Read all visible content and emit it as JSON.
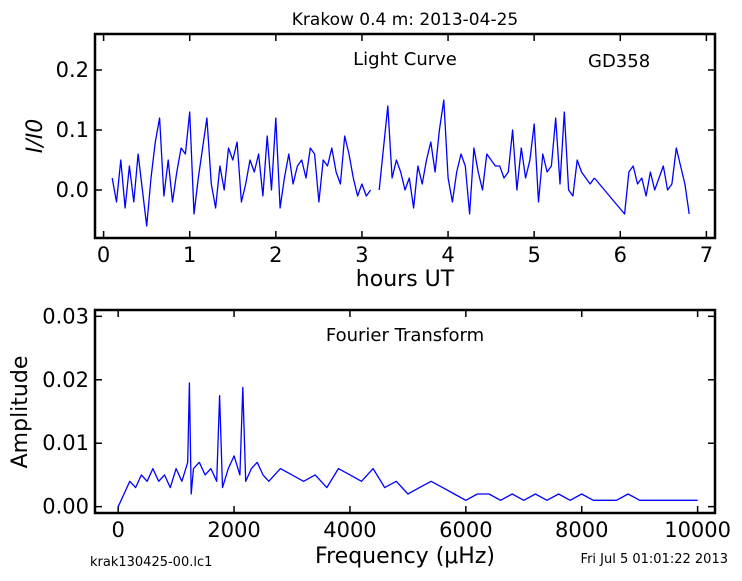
{
  "header": {
    "title": "Krakow 0.4 m:  2013-04-25"
  },
  "footer": {
    "left": "krak130425-00.lc1",
    "right": "Fri Jul  5 01:01:22 2013"
  },
  "colors": {
    "series": "#0000ff",
    "axes": "#000000",
    "background": "#ffffff"
  },
  "chart_data": [
    {
      "type": "line",
      "panel": "light-curve",
      "title": "Light Curve",
      "annotation": "GD358",
      "xlabel": "hours UT",
      "ylabel": "I/I0",
      "xlim": [
        -0.1,
        7.1
      ],
      "ylim": [
        -0.08,
        0.26
      ],
      "xticks": [
        0,
        1,
        2,
        3,
        4,
        5,
        6,
        7
      ],
      "xtick_labels": [
        "0",
        "1",
        "2",
        "3",
        "4",
        "5",
        "6",
        "7"
      ],
      "yticks": [
        0.0,
        0.1,
        0.2
      ],
      "ytick_labels": [
        "0.0",
        "0.1",
        "0.2"
      ],
      "grid": false,
      "series": [
        {
          "x": [
            0.1,
            0.15,
            0.2,
            0.25,
            0.3,
            0.35,
            0.4,
            0.45,
            0.5,
            0.55,
            0.6,
            0.65,
            0.7,
            0.75,
            0.8,
            0.85,
            0.9,
            0.95,
            1.0,
            1.05,
            1.1,
            1.15,
            1.2,
            1.25,
            1.3,
            1.35,
            1.4,
            1.45,
            1.5,
            1.55,
            1.6,
            1.65,
            1.7,
            1.75,
            1.8,
            1.85,
            1.9,
            1.95,
            2.0,
            2.05,
            2.1,
            2.15,
            2.2,
            2.25,
            2.3,
            2.35,
            2.4,
            2.45,
            2.5,
            2.55,
            2.6,
            2.65,
            2.7,
            2.75,
            2.8,
            2.85,
            2.9,
            2.95,
            3.0,
            3.05,
            3.1
          ],
          "y": [
            0.02,
            -0.02,
            0.05,
            -0.03,
            0.04,
            -0.02,
            0.06,
            0.0,
            -0.06,
            0.02,
            0.08,
            0.12,
            -0.01,
            0.05,
            -0.02,
            0.03,
            0.07,
            0.06,
            0.13,
            -0.04,
            0.02,
            0.07,
            0.12,
            0.01,
            -0.03,
            0.04,
            0.0,
            0.07,
            0.05,
            0.08,
            -0.02,
            0.01,
            0.05,
            0.03,
            0.06,
            -0.01,
            0.09,
            0.0,
            0.12,
            -0.03,
            0.02,
            0.06,
            0.01,
            0.04,
            0.05,
            0.02,
            0.07,
            0.06,
            -0.02,
            0.05,
            0.04,
            0.07,
            0.03,
            0.01,
            0.09,
            0.06,
            0.02,
            -0.01,
            0.01,
            -0.01,
            0.0
          ]
        },
        {
          "x": [
            3.1,
            3.15,
            3.2,
            3.25,
            3.3,
            3.35,
            3.4,
            3.45,
            3.5,
            3.55,
            3.6,
            3.65,
            3.7,
            3.75,
            3.8,
            3.85,
            3.9,
            3.95,
            4.0,
            4.05,
            4.1,
            4.15,
            4.2,
            4.25,
            4.3,
            4.35,
            4.4,
            4.45,
            4.5,
            4.55,
            4.6,
            4.65,
            4.7,
            4.75,
            4.8,
            4.85,
            4.9,
            4.95,
            5.0,
            5.05,
            5.1,
            5.15,
            5.2,
            5.25,
            5.3,
            5.35,
            5.4,
            5.45,
            5.5,
            5.55,
            5.6,
            5.65,
            5.7
          ],
          "y": [
            null,
            null,
            0.0,
            0.07,
            0.14,
            0.02,
            0.05,
            0.03,
            0.0,
            0.02,
            -0.03,
            0.04,
            0.01,
            0.05,
            0.08,
            0.03,
            0.1,
            0.15,
            0.02,
            -0.02,
            0.03,
            0.06,
            0.04,
            -0.04,
            0.07,
            0.03,
            0.0,
            0.06,
            0.05,
            0.04,
            0.04,
            0.02,
            0.03,
            0.1,
            0.0,
            0.07,
            0.02,
            0.05,
            0.11,
            -0.02,
            0.06,
            0.03,
            0.04,
            0.12,
            0.01,
            0.13,
            0.0,
            -0.01,
            0.05,
            0.03,
            0.02,
            0.01,
            0.02
          ]
        },
        {
          "x": [
            5.7,
            6.05,
            6.1,
            6.15,
            6.2,
            6.25,
            6.3,
            6.35,
            6.4,
            6.45,
            6.5,
            6.55,
            6.6,
            6.65,
            6.7,
            6.75,
            6.8
          ],
          "y": [
            0.02,
            -0.04,
            0.03,
            0.04,
            0.01,
            0.02,
            -0.01,
            0.03,
            0.0,
            0.02,
            0.04,
            0.0,
            0.01,
            0.07,
            0.04,
            0.01,
            -0.04
          ]
        }
      ]
    },
    {
      "type": "line",
      "panel": "fourier-transform",
      "title": "Fourier Transform",
      "xlabel": "Frequency (μHz)",
      "ylabel": "Amplitude",
      "xlim": [
        -400,
        10300
      ],
      "ylim": [
        -0.001,
        0.031
      ],
      "xticks": [
        0,
        2000,
        4000,
        6000,
        8000,
        10000
      ],
      "xtick_labels": [
        "0",
        "2000",
        "4000",
        "6000",
        "8000",
        "10000"
      ],
      "yticks": [
        0.0,
        0.01,
        0.02,
        0.03
      ],
      "ytick_labels": [
        "0.00",
        "0.01",
        "0.02",
        "0.03"
      ],
      "grid": false,
      "peaks": [
        {
          "frequency": 1230,
          "amplitude": 0.0195
        },
        {
          "frequency": 1750,
          "amplitude": 0.0175
        },
        {
          "frequency": 2150,
          "amplitude": 0.0188
        }
      ],
      "series": [
        {
          "x": [
            0,
            100,
            200,
            300,
            400,
            500,
            600,
            700,
            800,
            900,
            1000,
            1100,
            1200,
            1230,
            1260,
            1300,
            1400,
            1500,
            1600,
            1700,
            1750,
            1800,
            1900,
            2000,
            2100,
            2150,
            2200,
            2300,
            2400,
            2500,
            2600,
            2800,
            3000,
            3200,
            3400,
            3600,
            3800,
            4000,
            4200,
            4400,
            4600,
            4800,
            5000,
            5200,
            5400,
            5600,
            5800,
            6000,
            6200,
            6400,
            6600,
            6800,
            7000,
            7200,
            7400,
            7600,
            7800,
            8000,
            8200,
            8400,
            8600,
            8800,
            9000,
            9200,
            9400,
            9600,
            9800,
            10000
          ],
          "y": [
            0.0,
            0.002,
            0.004,
            0.003,
            0.005,
            0.004,
            0.006,
            0.004,
            0.005,
            0.003,
            0.006,
            0.004,
            0.007,
            0.0195,
            0.002,
            0.006,
            0.007,
            0.005,
            0.006,
            0.004,
            0.0175,
            0.003,
            0.006,
            0.008,
            0.005,
            0.0188,
            0.004,
            0.006,
            0.007,
            0.005,
            0.004,
            0.006,
            0.005,
            0.004,
            0.005,
            0.003,
            0.006,
            0.005,
            0.004,
            0.006,
            0.003,
            0.004,
            0.002,
            0.003,
            0.004,
            0.003,
            0.002,
            0.001,
            0.002,
            0.002,
            0.001,
            0.002,
            0.001,
            0.002,
            0.001,
            0.002,
            0.001,
            0.002,
            0.001,
            0.001,
            0.001,
            0.002,
            0.001,
            0.001,
            0.001,
            0.001,
            0.001,
            0.001
          ]
        }
      ]
    }
  ]
}
